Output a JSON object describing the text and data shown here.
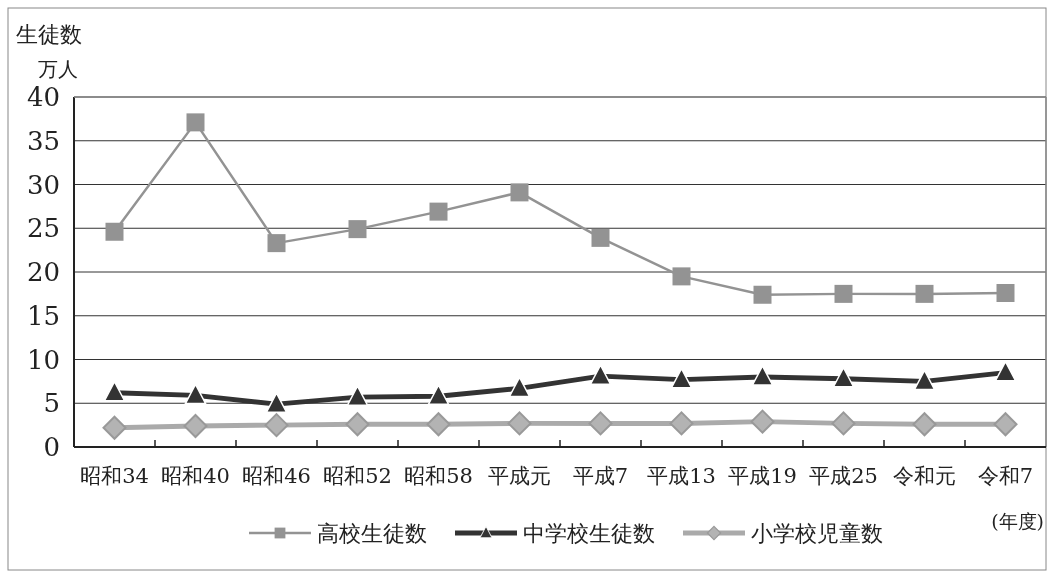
{
  "chart_data": {
    "type": "line",
    "ylabel": "生徒数",
    "xlabel": "(年度)",
    "annotations": [
      "万人"
    ],
    "categories": [
      "昭和34",
      "昭和40",
      "昭和46",
      "昭和52",
      "昭和58",
      "平成元",
      "平成7",
      "平成13",
      "平成19",
      "平成25",
      "令和元",
      "令和7"
    ],
    "series": [
      {
        "name": "高校生徒数",
        "color": "#939393",
        "marker": "square",
        "values": [
          24.6,
          37.1,
          23.3,
          24.9,
          26.9,
          29.1,
          23.9,
          19.5,
          17.4,
          17.5,
          17.5,
          17.6
        ]
      },
      {
        "name": "中学校生徒数",
        "color": "#333333",
        "marker": "triangle",
        "values": [
          6.2,
          5.9,
          4.9,
          5.7,
          5.8,
          6.7,
          8.1,
          7.7,
          8.0,
          7.8,
          7.5,
          8.5
        ]
      },
      {
        "name": "小学校児童数",
        "color": "#aaaaaa",
        "marker": "diamond",
        "values": [
          2.2,
          2.4,
          2.5,
          2.6,
          2.6,
          2.7,
          2.7,
          2.7,
          2.9,
          2.7,
          2.6,
          2.6
        ]
      }
    ],
    "ylim": [
      0,
      40
    ],
    "yticks": [
      0,
      5,
      10,
      15,
      20,
      25,
      30,
      35,
      40
    ],
    "grid": "y",
    "legend": "bottom"
  }
}
